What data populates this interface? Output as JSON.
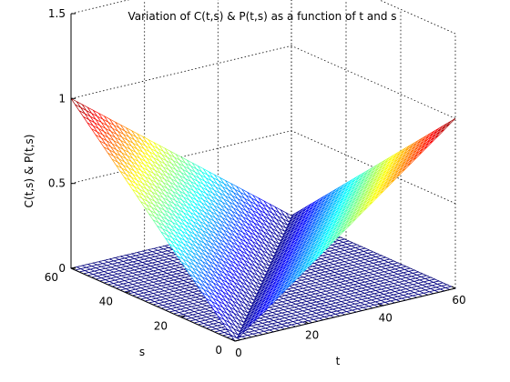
{
  "chart_data": {
    "type": "surface",
    "title": "Variation of C(t,s) & P(t,s) as a function of t and s",
    "xlabel": "t",
    "ylabel": "s",
    "zlabel": "C(t,s) & P(t,s)",
    "xlim": [
      0,
      60
    ],
    "ylim": [
      0,
      60
    ],
    "zlim": [
      0,
      1.5
    ],
    "x_ticks": [
      "0",
      "20",
      "40",
      "60"
    ],
    "y_ticks": [
      "0",
      "20",
      "40",
      "60"
    ],
    "z_ticks": [
      "0",
      "0.5",
      "1",
      "1.5"
    ],
    "colormap": "jet",
    "grid": true,
    "mesh_resolution": 40,
    "series": [
      {
        "name": "C(t,s)",
        "description_values": {
          "C(0,60)": 0.0,
          "C(60,0)": 1.0,
          "C(60,60)": 0.0,
          "C(0,0)": 0.0
        },
        "formula": "max(t - s, 0) / 60"
      },
      {
        "name": "P(t,s)",
        "description_values": {
          "P(0,60)": 1.0,
          "P(60,0)": 0.0,
          "P(0,0)": 0.0,
          "P(60,60)": 0.0
        },
        "formula": "max(s - t, 0) / 60"
      }
    ],
    "colors": {
      "background": "#ffffff",
      "axis": "#000000",
      "mesh_edge_dark": "#00007f"
    }
  }
}
